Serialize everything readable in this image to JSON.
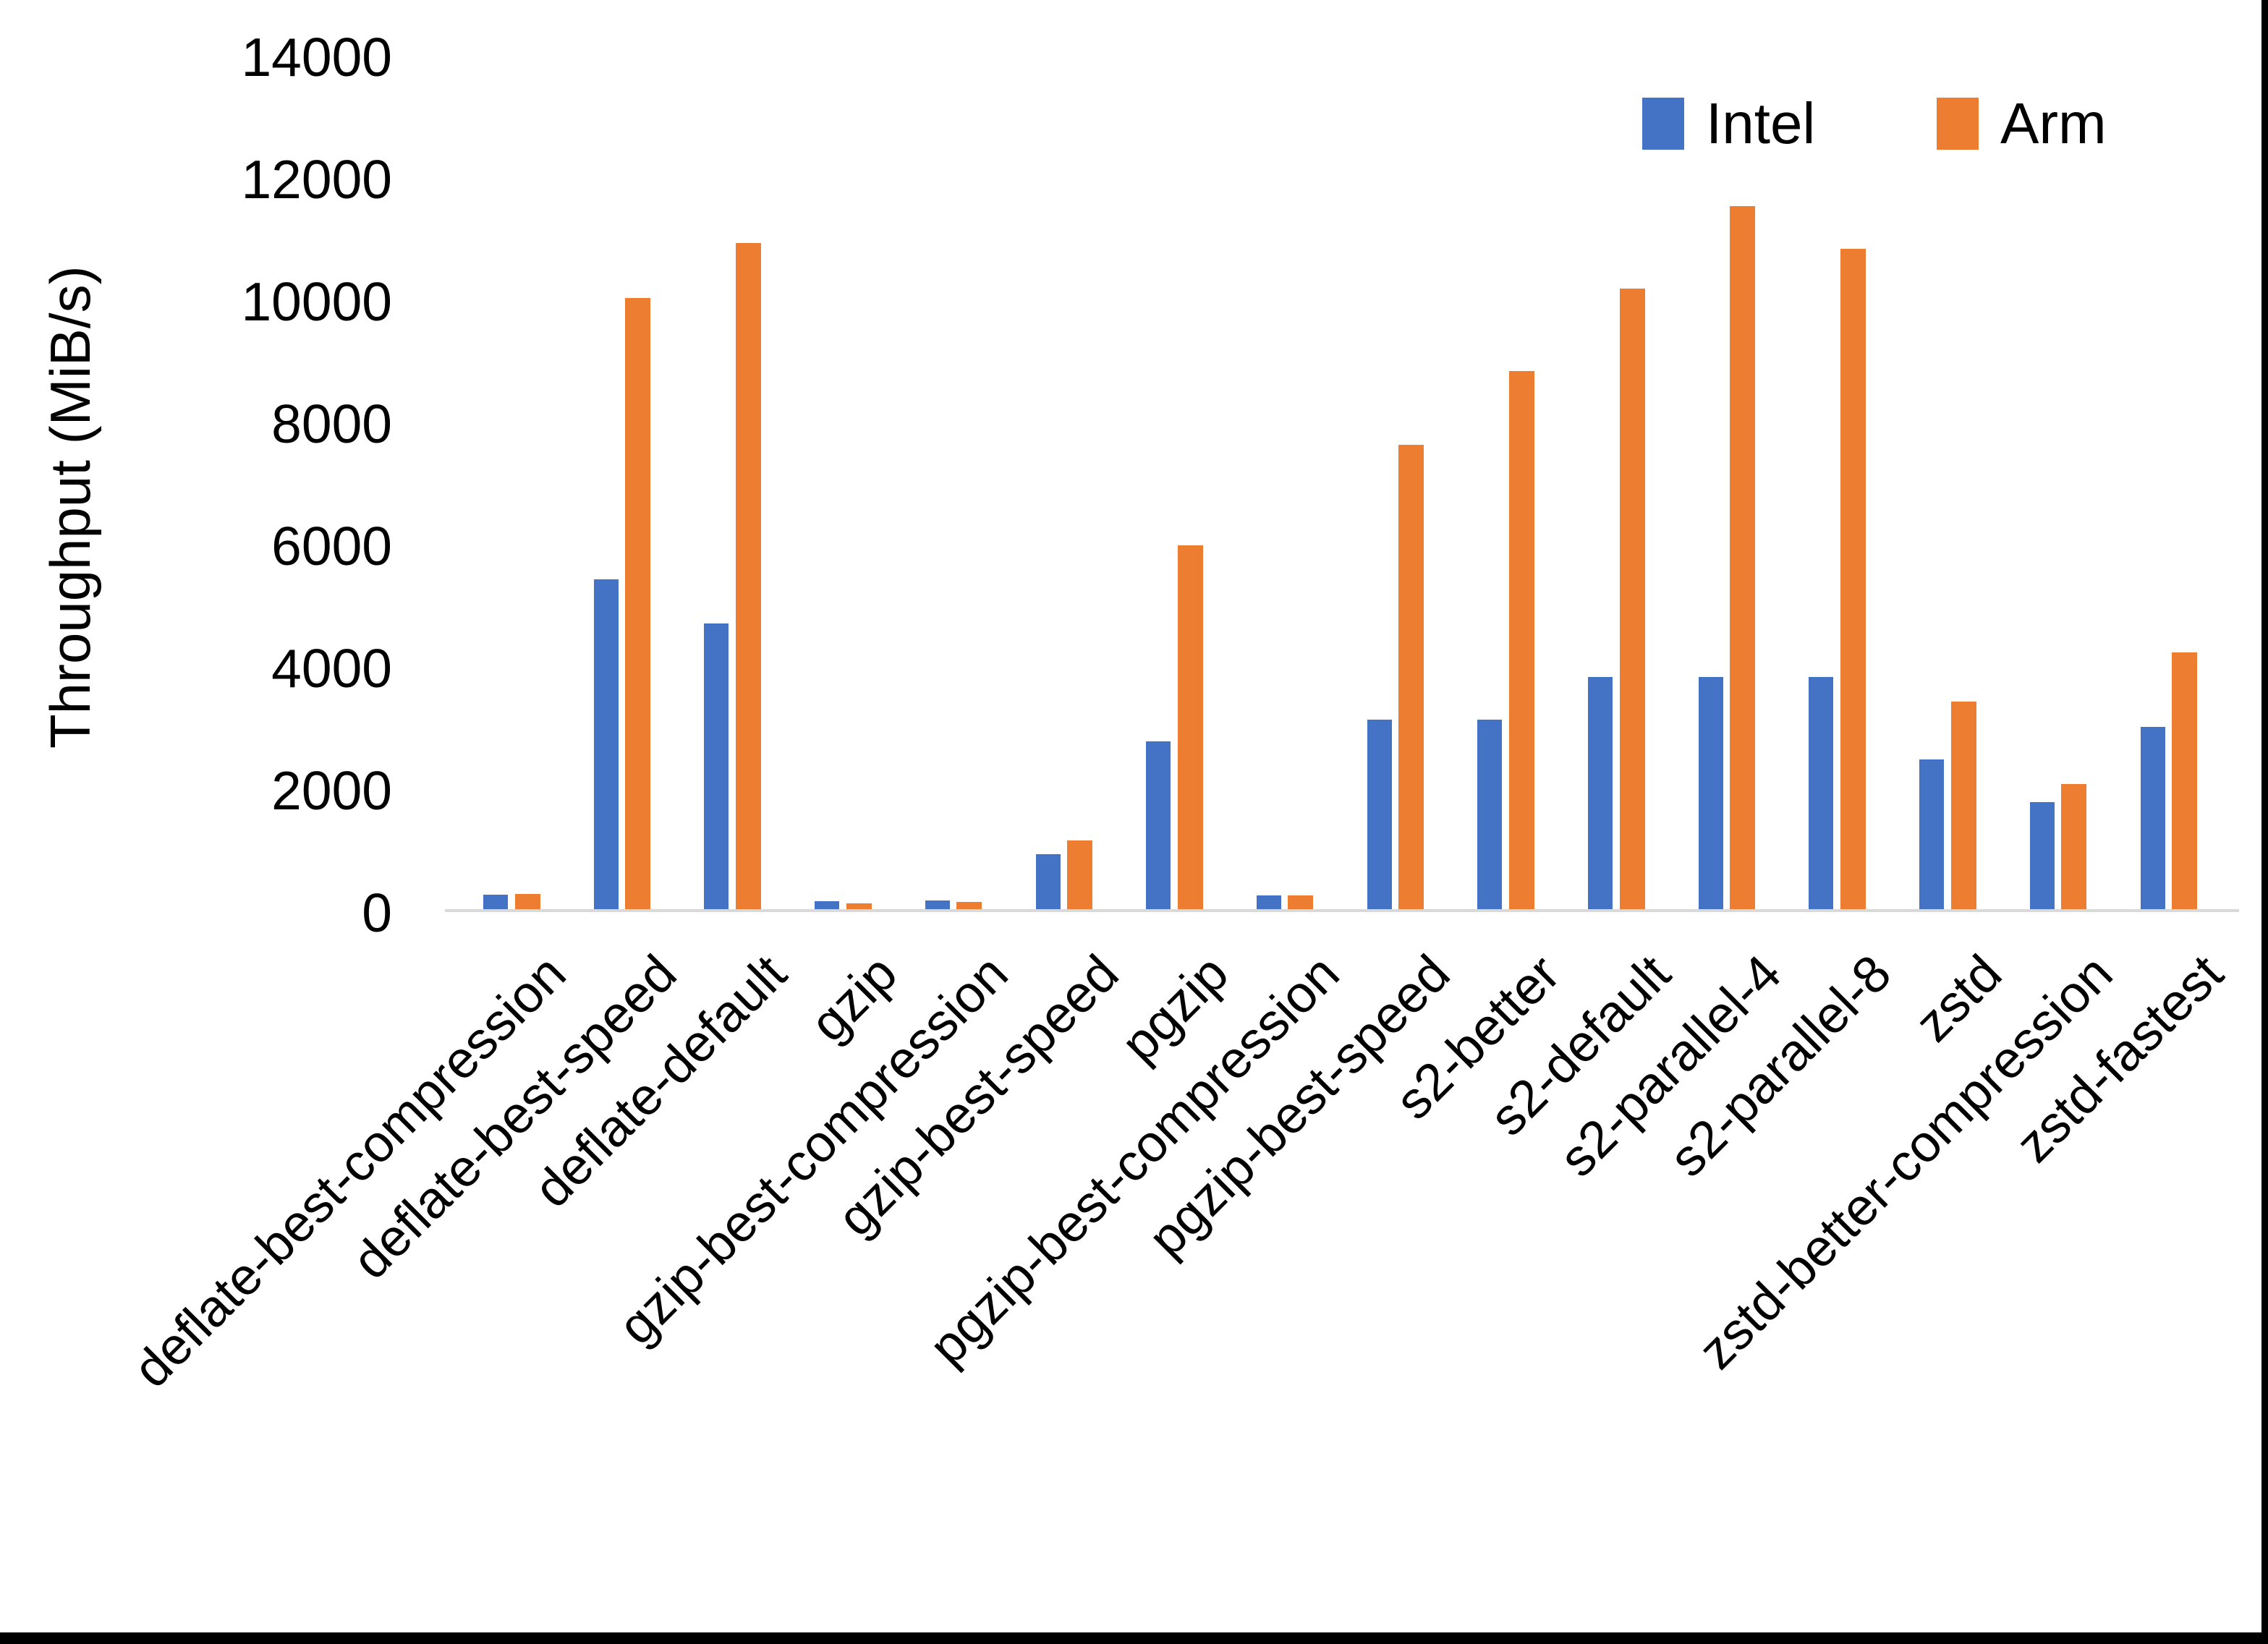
{
  "chart_data": {
    "type": "bar",
    "title": "",
    "xlabel": "",
    "ylabel": "Throughput (MiB/s)",
    "ylim": [
      0,
      14000
    ],
    "ytick_step": 2000,
    "yticks": [
      0,
      2000,
      4000,
      6000,
      8000,
      10000,
      12000,
      14000
    ],
    "grid": false,
    "legend_position": "top-right",
    "categories": [
      "deflate-best-compression",
      "deflate-best-speed",
      "deflate-default",
      "gzip",
      "gzip-best-compression",
      "gzip-best-speed",
      "pgzip",
      "pgzip-best-compression",
      "pgzip-best-speed",
      "s2-better",
      "s2-default",
      "s2-parallel-4",
      "s2-parallel-8",
      "zstd",
      "zstd-better-compression",
      "zstd-fastest"
    ],
    "series": [
      {
        "name": "Intel",
        "color": "#4472C4",
        "values": [
          240,
          5400,
          4670,
          135,
          140,
          900,
          2750,
          220,
          3100,
          3100,
          3800,
          3800,
          3800,
          2450,
          1750,
          2980
        ]
      },
      {
        "name": "Arm",
        "color": "#ED7D31",
        "values": [
          250,
          10000,
          10900,
          100,
          115,
          1120,
          5950,
          230,
          7600,
          8800,
          10150,
          11500,
          10800,
          3400,
          2050,
          4200
        ]
      }
    ]
  },
  "colors": {
    "intel": "#4472C4",
    "arm": "#ED7D31",
    "axis_line": "#D9D9D9",
    "text": "#000000",
    "background": "#FFFFFF",
    "border": "#000000"
  }
}
